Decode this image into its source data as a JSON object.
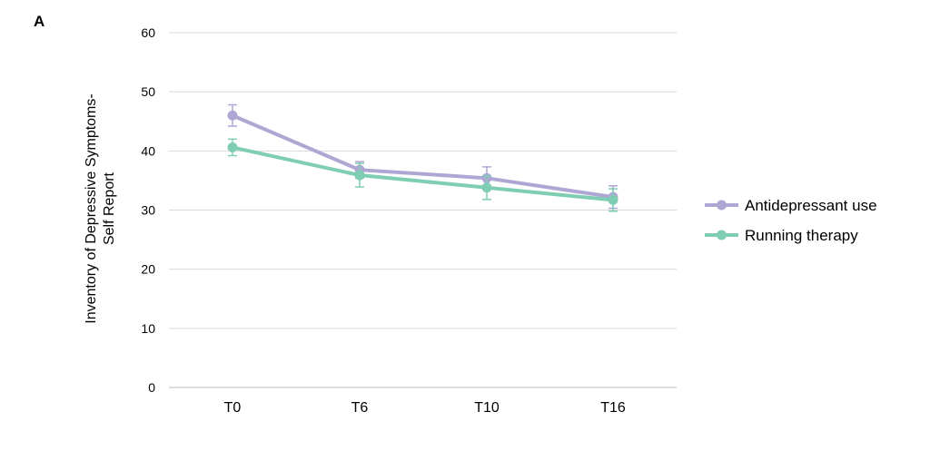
{
  "panel_label": "A",
  "chart_data": {
    "type": "line",
    "categories": [
      "T0",
      "T6",
      "T10",
      "T16"
    ],
    "ylabel_lines": [
      "Inventory of Depressive Symptoms-",
      "Self Report"
    ],
    "ylim": [
      0,
      60
    ],
    "yticks": [
      0,
      10,
      20,
      30,
      40,
      50,
      60
    ],
    "grid": true,
    "legend_position": "right",
    "series": [
      {
        "name": "Antidepressant use",
        "color": "#aea7d4",
        "values": [
          46.0,
          36.8,
          35.4,
          32.2
        ],
        "error": [
          1.8,
          1.4,
          1.9,
          1.9
        ]
      },
      {
        "name": "Running therapy",
        "color": "#7fcdb3",
        "values": [
          40.6,
          35.9,
          33.8,
          31.7
        ],
        "error": [
          1.4,
          2.0,
          2.0,
          1.9
        ]
      }
    ]
  }
}
